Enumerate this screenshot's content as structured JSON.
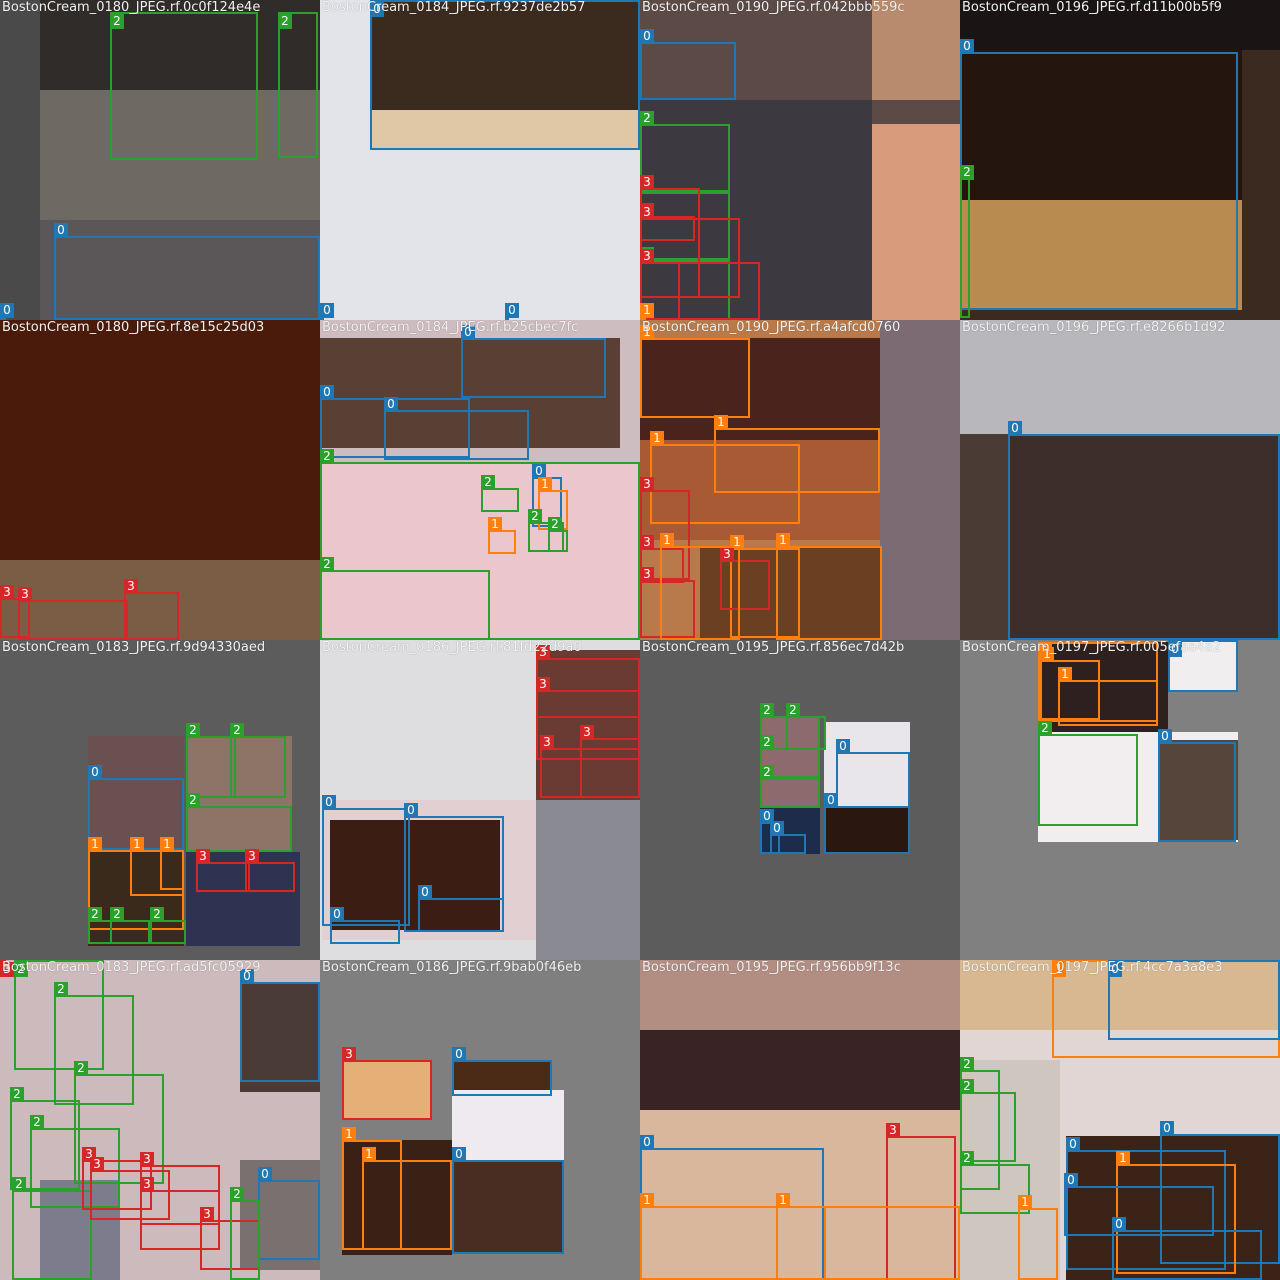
{
  "mosaic": {
    "class_colors": {
      "0": "#1f77b4",
      "1": "#ff7f0e",
      "2": "#2ca02c",
      "3": "#d62728"
    },
    "tiles": [
      {
        "title": "BostonCream_0180_JPEG.rf.0c0f124e4e",
        "bg": "#6e6a63",
        "boxes": [
          "2",
          "2",
          "0",
          "0"
        ]
      },
      {
        "title": "BostonCream_0184_JPEG.rf.9237de2b57",
        "bg": "#e3e3ea",
        "boxes": [
          "0",
          "0",
          "0"
        ]
      },
      {
        "title": "BostonCream_0190_JPEG.rf.042bbb559c",
        "bg": "#5b4a45",
        "boxes": [
          "0",
          "2",
          "2",
          "2",
          "3",
          "3",
          "3",
          "3",
          "3",
          "1"
        ]
      },
      {
        "title": "BostonCream_0196_JPEG.rf.d11b00b5f9",
        "bg": "#3b2a20",
        "boxes": [
          "0",
          "2"
        ]
      },
      {
        "title": "BostonCream_0180_JPEG.rf.8e15c25d03",
        "bg": "#3a1608",
        "boxes": [
          "3",
          "3",
          "3"
        ]
      },
      {
        "title": "BostonCream_0184_JPEG.rf.b25cbec7fc",
        "bg": "#cdbcc0",
        "boxes": [
          "0",
          "0",
          "0",
          "2",
          "2",
          "2",
          "0",
          "1",
          "1",
          "2",
          "2"
        ]
      },
      {
        "title": "BostonCream_0190_JPEG.rf.a4afcd0760",
        "bg": "#b87a4a",
        "boxes": [
          "1",
          "1",
          "1",
          "3",
          "3",
          "1",
          "1",
          "3",
          "3",
          "1"
        ]
      },
      {
        "title": "BostonCream_0196_JPEG.rf.e8266b1d92",
        "bg": "#d9d8dc",
        "boxes": [
          "0"
        ]
      },
      {
        "title": "BostonCream_0183_JPEG.rf.9d94330aed",
        "bg": "#5c5c5c",
        "boxes": [
          "0",
          "2",
          "2",
          "2",
          "1",
          "1",
          "1",
          "3",
          "3",
          "2",
          "2",
          "2"
        ]
      },
      {
        "title": "BostonCream_0186_JPEG.rf.81fd22d9a0",
        "bg": "#dedde0",
        "boxes": [
          "3",
          "3",
          "3",
          "3",
          "0",
          "0",
          "0",
          "0"
        ]
      },
      {
        "title": "BostonCream_0195_JPEG.rf.856ec7d42b",
        "bg": "#5c5c5c",
        "boxes": [
          "2",
          "2",
          "2",
          "2",
          "0",
          "0",
          "0",
          "0"
        ]
      },
      {
        "title": "BostonCream_0197_JPEG.rf.005efaa4a2",
        "bg": "#808080",
        "boxes": [
          "1",
          "1",
          "1",
          "0",
          "2",
          "0"
        ]
      },
      {
        "title": "BostonCream_0183_JPEG.rf.ad5fc05929",
        "bg": "#d8cdd0",
        "boxes": [
          "3",
          "2",
          "2",
          "2",
          "2",
          "2",
          "2",
          "0",
          "3",
          "3",
          "3",
          "3",
          "3",
          "0",
          "2"
        ]
      },
      {
        "title": "BostonCream_0186_JPEG.rf.9bab0f46eb",
        "bg": "#7f7f7f",
        "boxes": [
          "3",
          "0",
          "1",
          "1",
          "0"
        ]
      },
      {
        "title": "BostonCream_0195_JPEG.rf.956bb9f13c",
        "bg": "#c3a79a",
        "boxes": [
          "0",
          "3",
          "1",
          "1"
        ]
      },
      {
        "title": "BostonCream_0197_JPEG.rf.4cc7a3a8e3",
        "bg": "#e2d6d4",
        "boxes": [
          "1",
          "0",
          "2",
          "2",
          "2",
          "0",
          "0",
          "1",
          "0",
          "0",
          "1"
        ]
      }
    ]
  }
}
